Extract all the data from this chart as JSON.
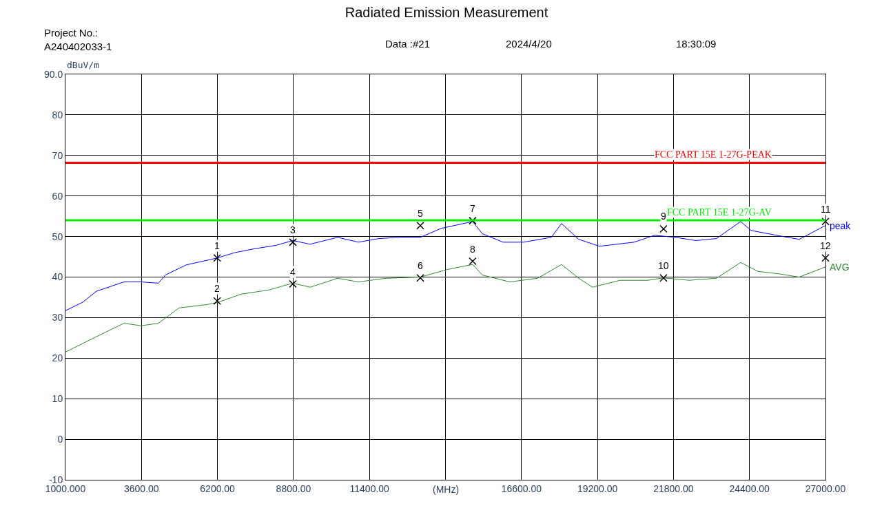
{
  "chart_data": {
    "type": "line",
    "title": "Radiated Emission Measurement",
    "xlabel": "(MHz)",
    "ylabel": "dBuV/m",
    "annotations": [
      "Project No.:\nA240402033-1",
      "Data :#21",
      "2024/4/20",
      "18:30:09",
      {
        "text": "1",
        "x": 6190,
        "y": 44.7
      },
      {
        "text": "2",
        "x": 6190,
        "y": 34.1
      },
      {
        "text": "3",
        "x": 8780,
        "y": 48.6
      },
      {
        "text": "4",
        "x": 8780,
        "y": 38.3
      },
      {
        "text": "5",
        "x": 13140,
        "y": 52.7
      },
      {
        "text": "6",
        "x": 13140,
        "y": 39.8
      },
      {
        "text": "7",
        "x": 14930,
        "y": 53.9
      },
      {
        "text": "8",
        "x": 14930,
        "y": 43.9
      },
      {
        "text": "9",
        "x": 21460,
        "y": 51.9
      },
      {
        "text": "10",
        "x": 21460,
        "y": 39.8
      },
      {
        "text": "11",
        "x": 27000,
        "y": 53.7
      },
      {
        "text": "12",
        "x": 27000,
        "y": 44.7
      }
    ],
    "series": [
      {
        "name": "peak",
        "color": "#0000ff",
        "x": [
          1000,
          1590,
          2060,
          3000,
          3590,
          4180,
          4420,
          5130,
          6190,
          6780,
          7480,
          8190,
          8780,
          9370,
          10310,
          11020,
          11720,
          12430,
          13140,
          13850,
          14930,
          15260,
          15970,
          16670,
          17620,
          17970,
          18560,
          19270,
          20450,
          21150,
          21860,
          22570,
          23270,
          24100,
          24450,
          25400,
          26100,
          27000
        ],
        "values": [
          31.7,
          33.8,
          36.5,
          38.8,
          38.8,
          38.5,
          40.5,
          43.0,
          44.7,
          46.0,
          47.0,
          47.8,
          49.0,
          48.1,
          49.8,
          48.6,
          49.5,
          49.8,
          49.8,
          52.0,
          53.7,
          50.7,
          48.6,
          48.6,
          49.8,
          53.2,
          49.3,
          47.6,
          48.6,
          50.3,
          49.8,
          49.0,
          49.5,
          53.7,
          51.5,
          50.2,
          49.3,
          52.7
        ]
      },
      {
        "name": "AVG",
        "color": "#2e8b2e",
        "x": [
          1000,
          2060,
          3000,
          3590,
          4180,
          4890,
          5830,
          6190,
          7010,
          7950,
          8780,
          9370,
          10310,
          11020,
          11960,
          13140,
          14080,
          14930,
          15260,
          16200,
          17150,
          17970,
          18560,
          19030,
          19970,
          20920,
          21460,
          22330,
          23270,
          24100,
          24690,
          25400,
          26100,
          27000
        ],
        "values": [
          21.5,
          25.3,
          28.6,
          28.0,
          28.6,
          32.4,
          33.2,
          33.7,
          35.8,
          36.8,
          38.5,
          37.5,
          39.7,
          38.8,
          39.7,
          40.0,
          41.9,
          43.1,
          40.5,
          38.8,
          39.7,
          43.1,
          39.7,
          37.5,
          39.2,
          39.2,
          39.8,
          39.2,
          39.7,
          43.6,
          41.4,
          40.8,
          40.0,
          42.5
        ]
      },
      {
        "type": "scatter",
        "marker": "cross",
        "color": "#000000",
        "x": [
          6190,
          6190,
          8780,
          8780,
          13140,
          13140,
          14930,
          14930,
          21460,
          21460,
          27000,
          27000
        ],
        "values": [
          44.7,
          34.1,
          48.6,
          38.3,
          52.7,
          39.8,
          53.9,
          43.9,
          51.9,
          39.8,
          53.7,
          44.7
        ]
      }
    ],
    "ref_lines": [
      {
        "axis": "y",
        "value": 68.2,
        "label": "FCC PART 15E 1-27G-PEAK",
        "color": "#ff0000"
      },
      {
        "axis": "y",
        "value": 54,
        "label": "FCC PART 15E 1-27G-AV",
        "color": "#00ee00"
      }
    ],
    "xlim": [
      1000,
      27000
    ],
    "ylim": [
      -10,
      90
    ],
    "xticks": [
      {
        "value": 1000,
        "label": "1000.000"
      },
      {
        "value": 3600,
        "label": "3600.00"
      },
      {
        "value": 6200,
        "label": "6200.00"
      },
      {
        "value": 8800,
        "label": "8800.00"
      },
      {
        "value": 11400,
        "label": "11400.00"
      },
      {
        "value": 14000,
        "label": null
      },
      {
        "value": 16600,
        "label": "16600.00"
      },
      {
        "value": 19200,
        "label": "19200.00"
      },
      {
        "value": 21800,
        "label": "21800.00"
      },
      {
        "value": 24400,
        "label": "24400.00"
      },
      {
        "value": 27000,
        "label": "27000.00"
      }
    ],
    "yticks": [
      -10,
      0,
      10,
      20,
      30,
      40,
      50,
      60,
      70,
      80,
      {
        "value": 90,
        "label": "90.0"
      }
    ],
    "grid": true
  }
}
